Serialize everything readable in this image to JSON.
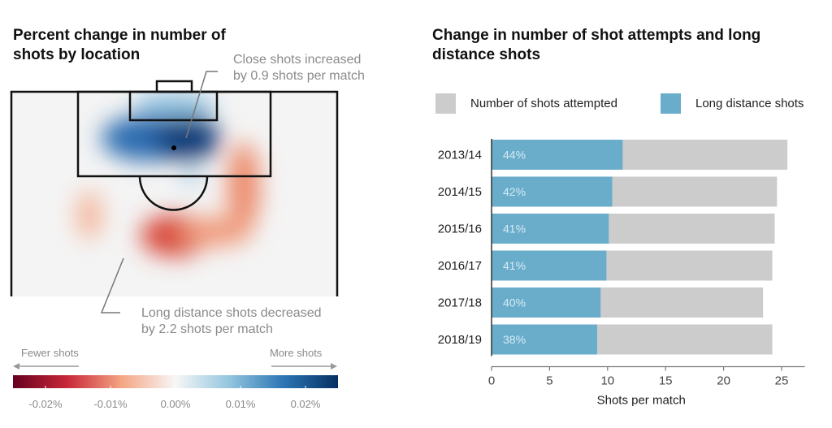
{
  "left_panel": {
    "title": "Percent change in number of shots by location",
    "annotation_close": [
      "Close shots increased",
      "by 0.9 shots per match"
    ],
    "annotation_long": [
      "Long distance shots decreased",
      "by 2.2 shots per match"
    ],
    "scale": {
      "fewer_label": "Fewer shots",
      "more_label": "More shots",
      "ticks": [
        "-0.02%",
        "-0.01%",
        "0.00%",
        "0.01%",
        "0.02%"
      ],
      "colors": [
        "#67001f",
        "#c8283a",
        "#f4a582",
        "#f7f7f7",
        "#92c5de",
        "#2c75b4",
        "#053061"
      ]
    }
  },
  "chart_data": [
    {
      "type": "heatmap",
      "title": "Percent change in number of shots by location",
      "description": "Change in shot frequency over a football half-pitch penalty area",
      "color_range": [
        -0.025,
        0.025
      ],
      "color_ticks": [
        "-0.02%",
        "-0.01%",
        "0.00%",
        "0.01%",
        "0.02%"
      ],
      "hotspots": [
        {
          "region": "central six-yard / penalty spot area",
          "sign": "increase",
          "intensity": 0.022
        },
        {
          "region": "left-centre penalty area",
          "sign": "increase",
          "intensity": 0.018
        },
        {
          "region": "central outside box",
          "sign": "decrease",
          "intensity": -0.015
        },
        {
          "region": "right outside box",
          "sign": "decrease",
          "intensity": -0.009
        },
        {
          "region": "left outside box",
          "sign": "decrease",
          "intensity": -0.006
        }
      ],
      "annotations": [
        "Close shots increased by 0.9 shots per match",
        "Long distance shots decreased by 2.2 shots per match"
      ]
    },
    {
      "type": "bar",
      "title": "Change in number of shot attempts and long distance shots",
      "orientation": "horizontal",
      "categories": [
        "2013/14",
        "2014/15",
        "2015/16",
        "2016/17",
        "2017/18",
        "2018/19"
      ],
      "series": [
        {
          "name": "Number of shots attempted",
          "color": "#cccccc",
          "values": [
            25.5,
            24.6,
            24.4,
            24.2,
            23.4,
            24.2
          ]
        },
        {
          "name": "Long distance shots",
          "color": "#6aadcb",
          "values": [
            11.3,
            10.4,
            10.1,
            9.9,
            9.4,
            9.1
          ]
        }
      ],
      "data_labels": [
        "44%",
        "42%",
        "41%",
        "41%",
        "40%",
        "38%"
      ],
      "xlabel": "Shots per match",
      "ylabel": "",
      "xlim": [
        0,
        27
      ],
      "xticks": [
        0,
        5,
        10,
        15,
        20,
        25
      ],
      "grid": false,
      "legend": "top"
    }
  ]
}
